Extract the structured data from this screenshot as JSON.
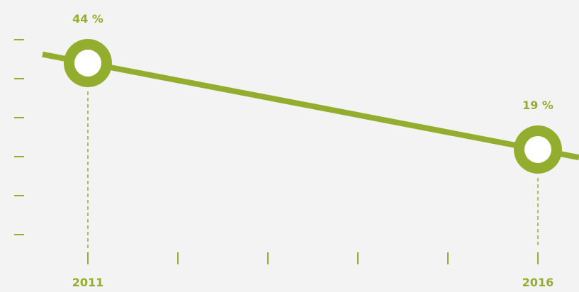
{
  "chart_data": {
    "type": "line",
    "x": [
      2011,
      2016
    ],
    "x_ticks": [
      2011,
      2012,
      2013,
      2014,
      2015,
      2016
    ],
    "x_tick_labels": [
      "2011",
      "",
      "",
      "",
      "",
      "2016"
    ],
    "values": [
      44,
      19
    ],
    "data_labels": [
      "44 %",
      "19 %"
    ],
    "title": "",
    "xlabel": "",
    "ylabel": "",
    "grid": false,
    "legend": "none",
    "colors": {
      "line": "#93ae2e",
      "marker_fill": "#ffffff",
      "label": "#93ae2e",
      "axis": "#93ae2e",
      "background": "#f2f3f2"
    }
  }
}
